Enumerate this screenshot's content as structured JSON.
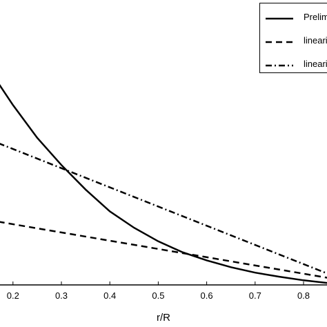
{
  "chart_data": {
    "type": "line",
    "title": "",
    "xlabel": "r/R",
    "ylabel": "",
    "xlim": [
      0.17,
      0.88
    ],
    "x_ticks": [
      "0.2",
      "0.3",
      "0.4",
      "0.5",
      "0.6",
      "0.7",
      "0.8"
    ],
    "x_tick_values": [
      0.2,
      0.3,
      0.4,
      0.5,
      0.6,
      0.7,
      0.8
    ],
    "grid": false,
    "legend": "top-right",
    "series": [
      {
        "name": "Prelim",
        "style": "solid",
        "x": [
          0.17,
          0.2,
          0.25,
          0.3,
          0.35,
          0.4,
          0.45,
          0.5,
          0.55,
          0.6,
          0.65,
          0.7,
          0.75,
          0.8,
          0.85,
          0.88
        ],
        "y": [
          0.92,
          0.84,
          0.72,
          0.62,
          0.53,
          0.45,
          0.39,
          0.34,
          0.3,
          0.27,
          0.245,
          0.225,
          0.21,
          0.197,
          0.187,
          0.183
        ]
      },
      {
        "name": "lineari",
        "style": "dashed",
        "x": [
          0.17,
          0.88
        ],
        "y": [
          0.412,
          0.197
        ]
      },
      {
        "name": "lineari",
        "style": "dashdot",
        "x": [
          0.17,
          0.88
        ],
        "y": [
          0.7,
          0.2
        ]
      }
    ]
  }
}
